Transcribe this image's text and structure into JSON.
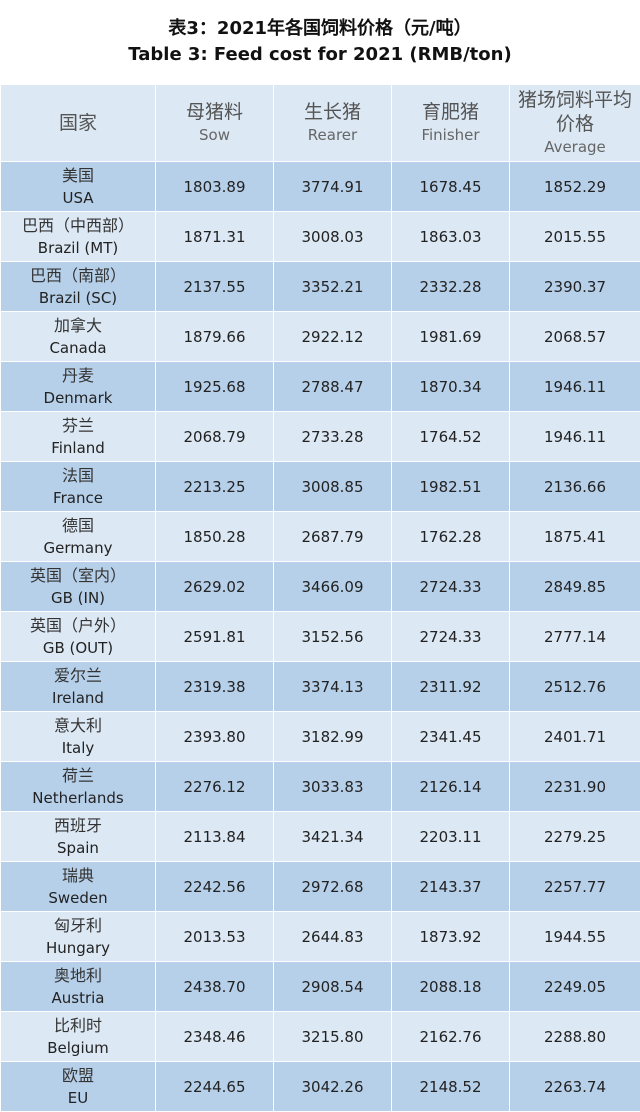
{
  "title": {
    "zh": "表3：2021年各国饲料价格（元/吨）",
    "en": "Table 3: Feed cost for 2021 (RMB/ton)"
  },
  "headers": {
    "country": {
      "zh": "国家"
    },
    "sow": {
      "zh": "母猪料",
      "en": "Sow"
    },
    "rearer": {
      "zh": "生长猪",
      "en": "Rearer"
    },
    "finisher": {
      "zh": "育肥猪",
      "en": "Finisher"
    },
    "average": {
      "zh": "猪场饲料平均价格",
      "en": "Average"
    }
  },
  "rows": [
    {
      "zh": "美国",
      "en": "USA",
      "sow": "1803.89",
      "rearer": "3774.91",
      "finisher": "1678.45",
      "average": "1852.29"
    },
    {
      "zh": "巴西（中西部）",
      "en": "Brazil (MT)",
      "sow": "1871.31",
      "rearer": "3008.03",
      "finisher": "1863.03",
      "average": "2015.55"
    },
    {
      "zh": "巴西（南部）",
      "en": "Brazil (SC)",
      "sow": "2137.55",
      "rearer": "3352.21",
      "finisher": "2332.28",
      "average": "2390.37"
    },
    {
      "zh": "加拿大",
      "en": "Canada",
      "sow": "1879.66",
      "rearer": "2922.12",
      "finisher": "1981.69",
      "average": "2068.57"
    },
    {
      "zh": "丹麦",
      "en": "Denmark",
      "sow": "1925.68",
      "rearer": "2788.47",
      "finisher": "1870.34",
      "average": "1946.11"
    },
    {
      "zh": "芬兰",
      "en": "Finland",
      "sow": "2068.79",
      "rearer": "2733.28",
      "finisher": "1764.52",
      "average": "1946.11"
    },
    {
      "zh": "法国",
      "en": "France",
      "sow": "2213.25",
      "rearer": "3008.85",
      "finisher": "1982.51",
      "average": "2136.66"
    },
    {
      "zh": "德国",
      "en": "Germany",
      "sow": "1850.28",
      "rearer": "2687.79",
      "finisher": "1762.28",
      "average": "1875.41"
    },
    {
      "zh": "英国（室内）",
      "en": "GB (IN)",
      "sow": "2629.02",
      "rearer": "3466.09",
      "finisher": "2724.33",
      "average": "2849.85"
    },
    {
      "zh": "英国（户外）",
      "en": "GB (OUT)",
      "sow": "2591.81",
      "rearer": "3152.56",
      "finisher": "2724.33",
      "average": "2777.14"
    },
    {
      "zh": "爱尔兰",
      "en": "Ireland",
      "sow": "2319.38",
      "rearer": "3374.13",
      "finisher": "2311.92",
      "average": "2512.76"
    },
    {
      "zh": "意大利",
      "en": "Italy",
      "sow": "2393.80",
      "rearer": "3182.99",
      "finisher": "2341.45",
      "average": "2401.71"
    },
    {
      "zh": "荷兰",
      "en": "Netherlands",
      "sow": "2276.12",
      "rearer": "3033.83",
      "finisher": "2126.14",
      "average": "2231.90"
    },
    {
      "zh": "西班牙",
      "en": "Spain",
      "sow": "2113.84",
      "rearer": "3421.34",
      "finisher": "2203.11",
      "average": "2279.25"
    },
    {
      "zh": "瑞典",
      "en": "Sweden",
      "sow": "2242.56",
      "rearer": "2972.68",
      "finisher": "2143.37",
      "average": "2257.77"
    },
    {
      "zh": "匈牙利",
      "en": "Hungary",
      "sow": "2013.53",
      "rearer": "2644.83",
      "finisher": "1873.92",
      "average": "1944.55"
    },
    {
      "zh": "奥地利",
      "en": "Austria",
      "sow": "2438.70",
      "rearer": "2908.54",
      "finisher": "2088.18",
      "average": "2249.05"
    },
    {
      "zh": "比利时",
      "en": "Belgium",
      "sow": "2348.46",
      "rearer": "3215.80",
      "finisher": "2162.76",
      "average": "2288.80"
    },
    {
      "zh": "欧盟",
      "en": "EU",
      "sow": "2244.65",
      "rearer": "3042.26",
      "finisher": "2148.52",
      "average": "2263.74"
    }
  ]
}
